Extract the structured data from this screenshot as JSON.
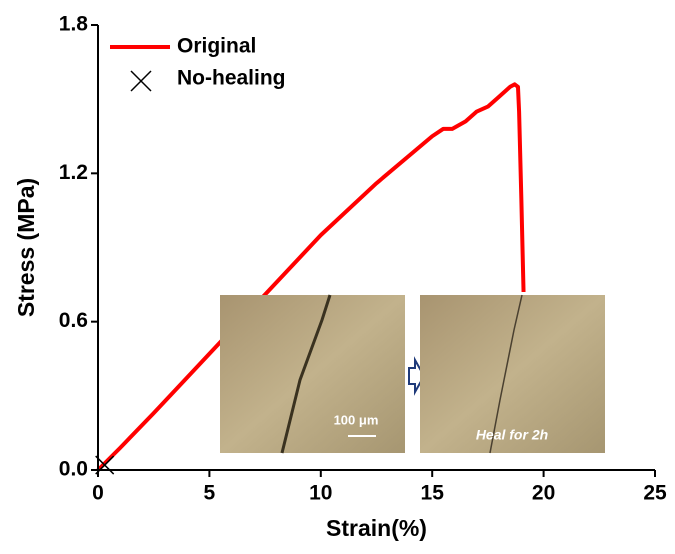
{
  "chart_data": {
    "type": "line",
    "x_label": "Strain(%)",
    "y_label": "Stress (MPa)",
    "xlim": [
      0,
      25
    ],
    "ylim": [
      0,
      1.8
    ],
    "xticks": [
      0,
      5,
      10,
      15,
      20,
      25
    ],
    "yticks": [
      {
        "value": 0,
        "label": "0.0"
      },
      0.6,
      1.2,
      1.8
    ],
    "legend": "upper left",
    "series": [
      {
        "name": "Original",
        "color": "#ff0000",
        "marker": "none",
        "x": [
          0,
          1,
          2.5,
          5,
          7.5,
          10,
          12.5,
          15,
          15.5,
          15.9,
          16.5,
          17,
          17.5,
          18,
          18.5,
          18.7,
          18.85,
          18.9,
          19.0,
          19.1
        ],
        "values": [
          0,
          0.09,
          0.23,
          0.47,
          0.71,
          0.95,
          1.16,
          1.35,
          1.38,
          1.38,
          1.41,
          1.45,
          1.47,
          1.51,
          1.55,
          1.56,
          1.55,
          1.45,
          1.1,
          0.72
        ]
      },
      {
        "name": "No-healing",
        "color": "#000000",
        "marker": "x",
        "x": [
          0.3
        ],
        "values": [
          0.02
        ]
      }
    ],
    "annotations": [
      "100 μm",
      "Heal for 2h"
    ]
  }
}
